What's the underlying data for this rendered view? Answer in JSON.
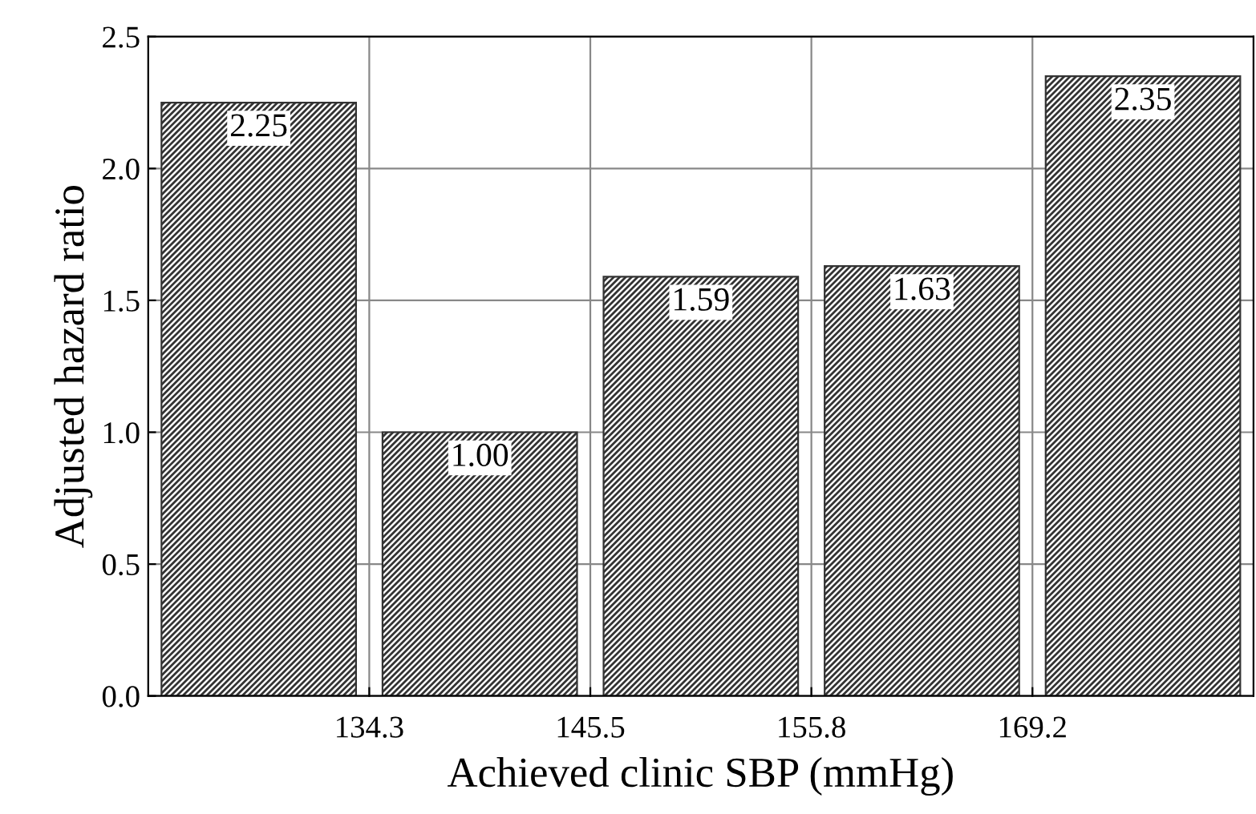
{
  "chart_data": {
    "type": "bar",
    "xlabel": "Achieved clinic SBP (mmHg)",
    "ylabel": "Adjusted hazard ratio",
    "categories": [
      null,
      null,
      null,
      null,
      null
    ],
    "values": [
      2.25,
      1.0,
      1.59,
      1.63,
      2.35
    ],
    "value_labels": [
      "2.25",
      "1.00",
      "1.59",
      "1.63",
      "2.35"
    ],
    "color": "#333333",
    "annotations": [
      "134.3",
      "145.5",
      "155.8",
      "169.2"
    ],
    "ylim": [
      0,
      2.5
    ],
    "yticks": [
      {
        "value": 0,
        "label": "0.0"
      },
      {
        "value": 0.5,
        "label": "0.5"
      },
      {
        "value": 1,
        "label": "1.0"
      },
      {
        "value": 1.5,
        "label": "1.5"
      },
      {
        "value": 2,
        "label": "2.0"
      },
      {
        "value": 2.5,
        "label": "2.5"
      }
    ],
    "grid": true
  }
}
